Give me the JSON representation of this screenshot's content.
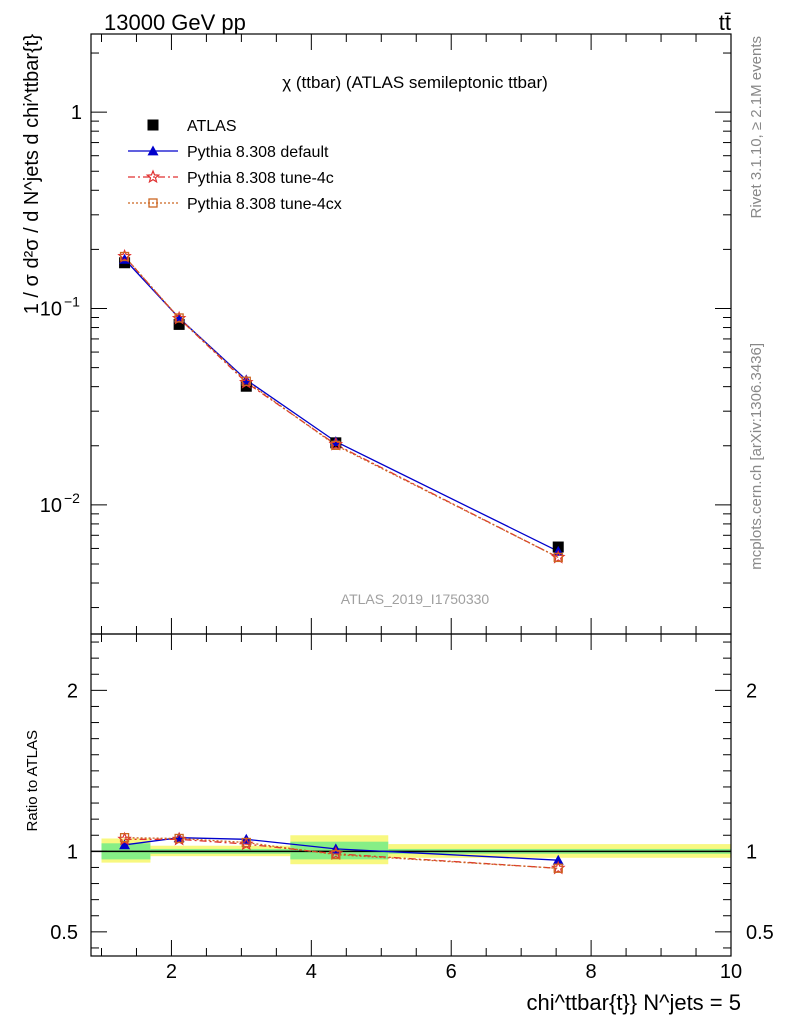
{
  "header": {
    "energy_label": "13000 GeV pp",
    "process_label": "tt̄"
  },
  "side_labels": {
    "rivet": "Rivet 3.1.10, ≥ 2.1M events",
    "mcplots": "mcplots.cern.ch [arXiv:1306.3436]"
  },
  "chart_data": [
    {
      "type": "line",
      "title": "χ (ttbar) (ATLAS semileptonic ttbar)",
      "ylabel": "1 / σ d²σ / d N^jets d chi^ttbar{t}",
      "watermark": "ATLAS_2019_I1750330",
      "xlim": [
        0.85,
        10.0
      ],
      "ylim": [
        0.0022,
        2.5
      ],
      "yscale": "log",
      "y_ticklabels": [
        {
          "value": 1,
          "label": "1"
        },
        {
          "value": 0.1,
          "label": "10",
          "exp": "−1"
        },
        {
          "value": 0.01,
          "label": "10",
          "exp": "−2"
        }
      ],
      "legend_position": "top-left",
      "series": [
        {
          "name": "ATLAS",
          "color": "#000000",
          "marker": "square",
          "line": "none",
          "x": [
            1.33,
            2.11,
            3.07,
            4.35,
            7.53
          ],
          "y": [
            0.171,
            0.083,
            0.0402,
            0.0207,
            0.0061
          ]
        },
        {
          "name": "Pythia 8.308 default",
          "color": "#0000cc",
          "marker": "triangle",
          "line": "solid",
          "x": [
            1.33,
            2.11,
            3.07,
            4.35,
            7.53
          ],
          "y": [
            0.178,
            0.0895,
            0.0433,
            0.021,
            0.0058
          ]
        },
        {
          "name": "Pythia 8.308 tune-4c",
          "color": "#e03030",
          "marker": "star",
          "line": "dashdot",
          "x": [
            1.33,
            2.11,
            3.07,
            4.35,
            7.53
          ],
          "y": [
            0.184,
            0.089,
            0.042,
            0.0203,
            0.0054
          ]
        },
        {
          "name": "Pythia 8.308 tune-4cx",
          "color": "#cc6622",
          "marker": "open-square",
          "line": "dotted",
          "x": [
            1.33,
            2.11,
            3.07,
            4.35,
            7.53
          ],
          "y": [
            0.184,
            0.0895,
            0.0426,
            0.0201,
            0.0054
          ]
        }
      ]
    },
    {
      "type": "line",
      "ylabel": "Ratio to ATLAS",
      "xlabel": "chi^ttbar{t}} N^jets = 5",
      "xlim": [
        0.85,
        10.0
      ],
      "ylim": [
        0.35,
        2.35
      ],
      "x_ticks": [
        2,
        4,
        6,
        8,
        10
      ],
      "y_ticks": [
        0.5,
        1,
        2
      ],
      "reference_line": 1.0,
      "uncertainty_bands": [
        {
          "x0": 1.0,
          "x1": 1.7,
          "inner": [
            0.95,
            1.05
          ],
          "outer": [
            0.93,
            1.08
          ]
        },
        {
          "x0": 1.7,
          "x1": 3.7,
          "inner": [
            0.985,
            1.015
          ],
          "outer": [
            0.97,
            1.035
          ]
        },
        {
          "x0": 3.7,
          "x1": 5.1,
          "inner": [
            0.95,
            1.06
          ],
          "outer": [
            0.92,
            1.1
          ]
        },
        {
          "x0": 5.1,
          "x1": 10.0,
          "inner": [
            0.985,
            1.015
          ],
          "outer": [
            0.96,
            1.045
          ]
        }
      ],
      "band_colors": {
        "inner": "#86ee86",
        "outer": "#f8f880"
      },
      "series": [
        {
          "name": "Pythia 8.308 default",
          "color": "#0000cc",
          "marker": "triangle",
          "line": "solid",
          "x": [
            1.33,
            2.11,
            3.07,
            4.35,
            7.53
          ],
          "y": [
            1.04,
            1.085,
            1.075,
            1.015,
            0.945
          ]
        },
        {
          "name": "Pythia 8.308 tune-4c",
          "color": "#e03030",
          "marker": "star",
          "line": "dashdot",
          "x": [
            1.33,
            2.11,
            3.07,
            4.35,
            7.53
          ],
          "y": [
            1.075,
            1.075,
            1.045,
            0.985,
            0.895
          ]
        },
        {
          "name": "Pythia 8.308 tune-4cx",
          "color": "#cc6622",
          "marker": "open-square",
          "line": "dotted",
          "x": [
            1.33,
            2.11,
            3.07,
            4.35,
            7.53
          ],
          "y": [
            1.085,
            1.08,
            1.055,
            0.98,
            0.895
          ]
        }
      ]
    }
  ]
}
